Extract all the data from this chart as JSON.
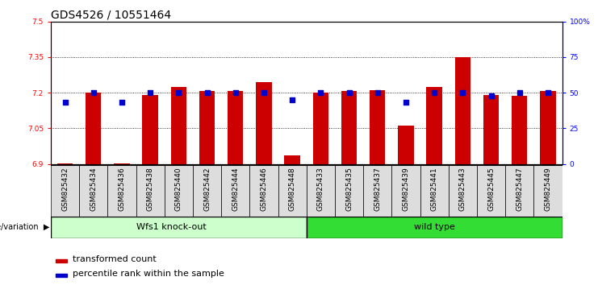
{
  "title": "GDS4526 / 10551464",
  "categories": [
    "GSM825432",
    "GSM825434",
    "GSM825436",
    "GSM825438",
    "GSM825440",
    "GSM825442",
    "GSM825444",
    "GSM825446",
    "GSM825448",
    "GSM825433",
    "GSM825435",
    "GSM825437",
    "GSM825439",
    "GSM825441",
    "GSM825443",
    "GSM825445",
    "GSM825447",
    "GSM825449"
  ],
  "bar_values": [
    6.902,
    7.2,
    6.902,
    7.19,
    7.225,
    7.208,
    7.208,
    7.245,
    6.935,
    7.2,
    7.208,
    7.21,
    7.06,
    7.225,
    7.35,
    7.19,
    7.185,
    7.208
  ],
  "percentile_values": [
    43,
    50,
    43,
    50,
    50,
    50,
    50,
    50,
    45,
    50,
    50,
    50,
    43,
    50,
    50,
    48,
    50,
    50
  ],
  "group1_label": "Wfs1 knock-out",
  "group2_label": "wild type",
  "group1_count": 9,
  "group2_count": 9,
  "genotype_label": "genotype/variation",
  "ylim": [
    6.9,
    7.5
  ],
  "yticks": [
    6.9,
    7.05,
    7.2,
    7.35,
    7.5
  ],
  "right_yticks": [
    0,
    25,
    50,
    75,
    100
  ],
  "bar_color": "#cc0000",
  "dot_color": "#0000cc",
  "group1_color": "#ccffcc",
  "group2_color": "#33dd33",
  "xtick_bg_color": "#dddddd",
  "bg_color": "#ffffff",
  "legend_red_label": "transformed count",
  "legend_blue_label": "percentile rank within the sample",
  "title_fontsize": 10,
  "tick_fontsize": 6.5,
  "legend_fontsize": 8,
  "group_fontsize": 8
}
